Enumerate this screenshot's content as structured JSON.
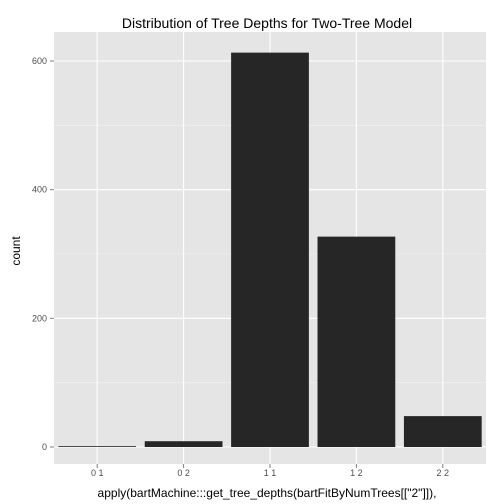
{
  "chart_data": {
    "type": "bar",
    "title": "Distribution of Tree Depths for Two-Tree Model",
    "xlabel": "apply(bartMachine:::get_tree_depths(bartFitByNumTrees[[\"2\"]]),",
    "ylabel": "count",
    "categories": [
      "0 1",
      "0 2",
      "1 1",
      "1 2",
      "2 2"
    ],
    "values": [
      1,
      9,
      613,
      327,
      48
    ],
    "ylim": [
      0,
      660
    ],
    "yticks": [
      0,
      200,
      400,
      600
    ],
    "grid": true,
    "colors": {
      "panel": "#e5e5e5",
      "grid_major": "#ffffff",
      "grid_minor": "#f2f2f2",
      "bar": "#262626",
      "tick_text": "#4d4d4d"
    }
  }
}
